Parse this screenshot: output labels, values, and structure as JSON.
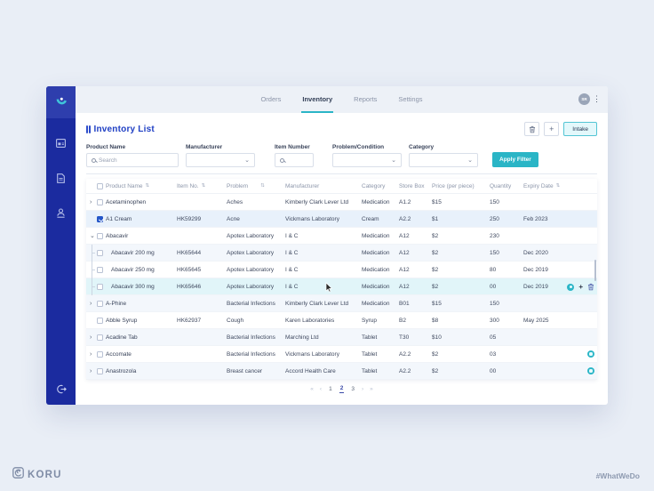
{
  "topbar": {
    "tabs": [
      {
        "label": "Orders",
        "active": false
      },
      {
        "label": "Inventory",
        "active": true
      },
      {
        "label": "Reports",
        "active": false
      },
      {
        "label": "Settings",
        "active": false
      }
    ],
    "avatar_initials": "SR"
  },
  "header": {
    "title": "Inventory List",
    "intake_label": "Intake"
  },
  "filters": {
    "fields": [
      {
        "label": "Product Name",
        "type": "search",
        "placeholder": "Search",
        "value": ""
      },
      {
        "label": "Manufacturer",
        "type": "select",
        "value": ""
      },
      {
        "label": "Item Number",
        "type": "search",
        "placeholder": "",
        "value": ""
      },
      {
        "label": "Problem/Condition",
        "type": "select",
        "value": ""
      },
      {
        "label": "Category",
        "type": "select",
        "value": ""
      }
    ],
    "apply_label": "Apply Filter"
  },
  "table": {
    "columns": [
      {
        "label": "Product Name",
        "sortable": true,
        "far_sort": false
      },
      {
        "label": "Item No.",
        "sortable": true,
        "far_sort": false
      },
      {
        "label": "Problem",
        "sortable": true,
        "far_sort": true
      },
      {
        "label": "Manufacturer",
        "sortable": false,
        "far_sort": false
      },
      {
        "label": "Category",
        "sortable": false,
        "far_sort": false
      },
      {
        "label": "Store Box",
        "sortable": false,
        "far_sort": false
      },
      {
        "label": "Price (per piece)",
        "sortable": false,
        "far_sort": false
      },
      {
        "label": "Quantity",
        "sortable": false,
        "far_sort": false
      },
      {
        "label": "Expiry Date",
        "sortable": true,
        "far_sort": false
      }
    ],
    "rows": [
      {
        "expand": "collapsed",
        "checked": false,
        "name": "Acetaminophen",
        "item": "",
        "problem": "Aches",
        "manufacturer": "Kimberly  Clark Lever Ltd",
        "category": "Medication",
        "box": "A1.2",
        "price": "$15",
        "qty": "150",
        "expiry": "",
        "state": "default",
        "badge": false,
        "actions": false
      },
      {
        "expand": "none",
        "checked": true,
        "name": "A1 Cream",
        "item": "HK59299",
        "problem": "Acne",
        "manufacturer": "Vickmans Laboratory",
        "category": "Cream",
        "box": "A2.2",
        "price": "$1",
        "qty": "250",
        "expiry": "Feb 2023",
        "state": "selected",
        "badge": false,
        "actions": false
      },
      {
        "expand": "expanded",
        "checked": false,
        "name": "Abacavir",
        "item": "",
        "problem": "Apotex Laboratory",
        "manufacturer": "I & C",
        "category": "Medication",
        "box": "A12",
        "price": "$2",
        "qty": "230",
        "expiry": "",
        "state": "default",
        "badge": false,
        "actions": false
      },
      {
        "expand": "child",
        "checked": false,
        "name": "Abacavir 200 mg",
        "item": "HK65644",
        "problem": "Apotex Laboratory",
        "manufacturer": "I & C",
        "category": "Medication",
        "box": "A12",
        "price": "$2",
        "qty": "150",
        "expiry": "Dec 2020",
        "state": "alt",
        "badge": false,
        "actions": false
      },
      {
        "expand": "child",
        "checked": false,
        "name": "Abacavir 250 mg",
        "item": "HK65645",
        "problem": "Apotex Laboratory",
        "manufacturer": "I & C",
        "category": "Medication",
        "box": "A12",
        "price": "$2",
        "qty": "80",
        "expiry": "Dec 2019",
        "state": "default",
        "badge": false,
        "actions": false
      },
      {
        "expand": "child",
        "checked": false,
        "name": "Abacavir 300 mg",
        "item": "HK65646",
        "problem": "Apotex Laboratory",
        "manufacturer": "I & C",
        "category": "Medication",
        "box": "A12",
        "price": "$2",
        "qty": "00",
        "expiry": "Dec 2019",
        "state": "hover",
        "badge": false,
        "actions": true
      },
      {
        "expand": "collapsed",
        "checked": false,
        "name": "A-Phine",
        "item": "",
        "problem": "Bacterial Infections",
        "manufacturer": "Kimberly  Clark Lever Ltd",
        "category": "Medication",
        "box": "B01",
        "price": "$15",
        "qty": "150",
        "expiry": "",
        "state": "alt",
        "badge": false,
        "actions": false
      },
      {
        "expand": "none",
        "checked": false,
        "name": "Abble Syrup",
        "item": "HK62937",
        "problem": "Cough",
        "manufacturer": "Karen Laboratories",
        "category": "Syrup",
        "box": "B2",
        "price": "$8",
        "qty": "300",
        "expiry": "May 2025",
        "state": "default",
        "badge": false,
        "actions": false
      },
      {
        "expand": "collapsed",
        "checked": false,
        "name": "Acadine Tab",
        "item": "",
        "problem": "Bacterial Infections",
        "manufacturer": "Marching Ltd",
        "category": "Tablet",
        "box": "T30",
        "price": "$10",
        "qty": "05",
        "expiry": "",
        "state": "alt",
        "badge": false,
        "actions": false
      },
      {
        "expand": "collapsed",
        "checked": false,
        "name": "Accomate",
        "item": "",
        "problem": "Bacterial Infections",
        "manufacturer": "Vickmans Laboratory",
        "category": "Tablet",
        "box": "A2.2",
        "price": "$2",
        "qty": "03",
        "expiry": "",
        "state": "default",
        "badge": true,
        "actions": false
      },
      {
        "expand": "collapsed",
        "checked": false,
        "name": "Anastrozola",
        "item": "",
        "problem": "Breast cancer",
        "manufacturer": "Accord Health Care",
        "category": "Tablet",
        "box": "A2.2",
        "price": "$2",
        "qty": "00",
        "expiry": "",
        "state": "alt",
        "badge": true,
        "actions": false
      }
    ]
  },
  "pagination": {
    "first": "«",
    "prev": "‹",
    "pages": [
      "1",
      "2",
      "3"
    ],
    "active": "2",
    "next": "›",
    "last": "»"
  },
  "glyphs": {
    "sort": "⇅",
    "chevron": "⌄",
    "expand_collapsed": "›",
    "expand_expanded": "⌄",
    "plus": "+",
    "kebab": "⋮"
  },
  "footer": {
    "brand": "KORU",
    "hashtag": "#WhatWeDo"
  },
  "colors": {
    "accent_teal": "#2ab5c6",
    "sidebar_navy": "#1b2b9f",
    "title_blue": "#2040c4",
    "selected_row": "#e8f1fb",
    "hover_row": "#e1f5f9"
  }
}
